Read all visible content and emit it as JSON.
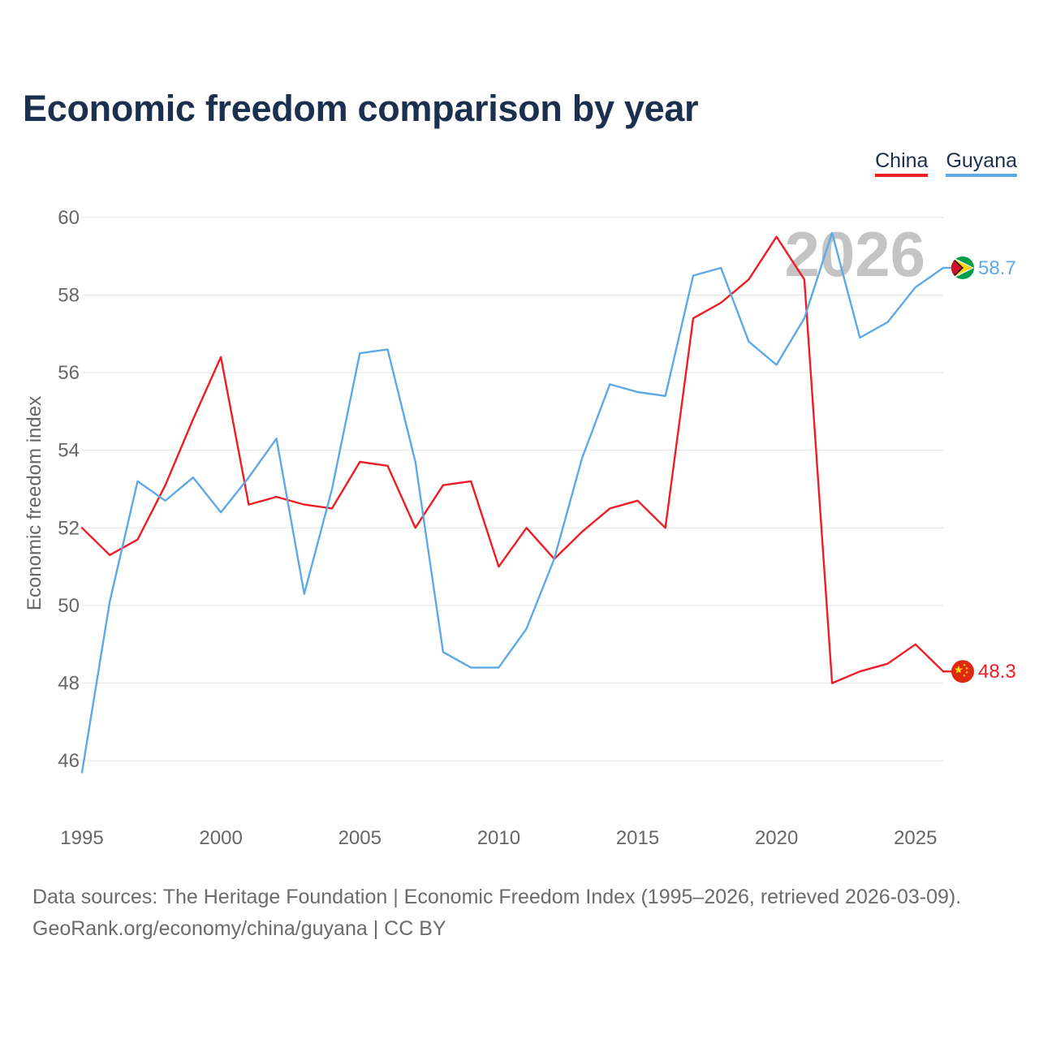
{
  "header": {
    "title": "Economic freedom comparison by year"
  },
  "legend": {
    "items": [
      {
        "label": "China",
        "color": "#ee1c25"
      },
      {
        "label": "Guyana",
        "color": "#5fa8e6"
      }
    ]
  },
  "footer": {
    "line1": "Data sources: The Heritage Foundation | Economic Freedom Index (1995–2026, retrieved 2026-03-09).",
    "line2": "GeoRank.org/economy/china/guyana | CC BY"
  },
  "chart_data": {
    "type": "line",
    "title": "Economic freedom comparison by year",
    "xlabel": "",
    "ylabel": "Economic freedom index",
    "current_year_label": "2026",
    "xlim": [
      1995,
      2026
    ],
    "ylim": [
      45,
      61
    ],
    "yticks": [
      46,
      48,
      50,
      52,
      54,
      56,
      58,
      60
    ],
    "xticks": [
      1995,
      2000,
      2005,
      2010,
      2015,
      2020,
      2025
    ],
    "grid": true,
    "legend_position": "top-right",
    "x": [
      1995,
      1996,
      1997,
      1998,
      1999,
      2000,
      2001,
      2002,
      2003,
      2004,
      2005,
      2006,
      2007,
      2008,
      2009,
      2010,
      2011,
      2012,
      2013,
      2014,
      2015,
      2016,
      2017,
      2018,
      2019,
      2020,
      2021,
      2022,
      2023,
      2024,
      2025,
      2026
    ],
    "series": [
      {
        "name": "China",
        "color": "#ee1c25",
        "flag_icon": "china-flag-icon",
        "end_label": "48.3",
        "values": [
          52.0,
          51.3,
          51.7,
          53.1,
          54.8,
          56.4,
          52.6,
          52.8,
          52.6,
          52.5,
          53.7,
          53.6,
          52.0,
          53.1,
          53.2,
          51.0,
          52.0,
          51.2,
          51.9,
          52.5,
          52.7,
          52.0,
          57.4,
          57.8,
          58.4,
          59.5,
          58.4,
          48.0,
          48.3,
          48.5,
          49.0,
          48.3
        ]
      },
      {
        "name": "Guyana",
        "color": "#5fa8e6",
        "flag_icon": "guyana-flag-icon",
        "end_label": "58.7",
        "values": [
          45.7,
          50.1,
          53.2,
          52.7,
          53.3,
          52.4,
          53.3,
          54.3,
          50.3,
          53.0,
          56.5,
          56.6,
          53.7,
          48.8,
          48.4,
          48.4,
          49.4,
          51.2,
          53.8,
          55.7,
          55.5,
          55.4,
          58.5,
          58.7,
          56.8,
          56.2,
          57.4,
          59.6,
          56.9,
          57.3,
          58.2,
          58.7
        ]
      }
    ]
  }
}
